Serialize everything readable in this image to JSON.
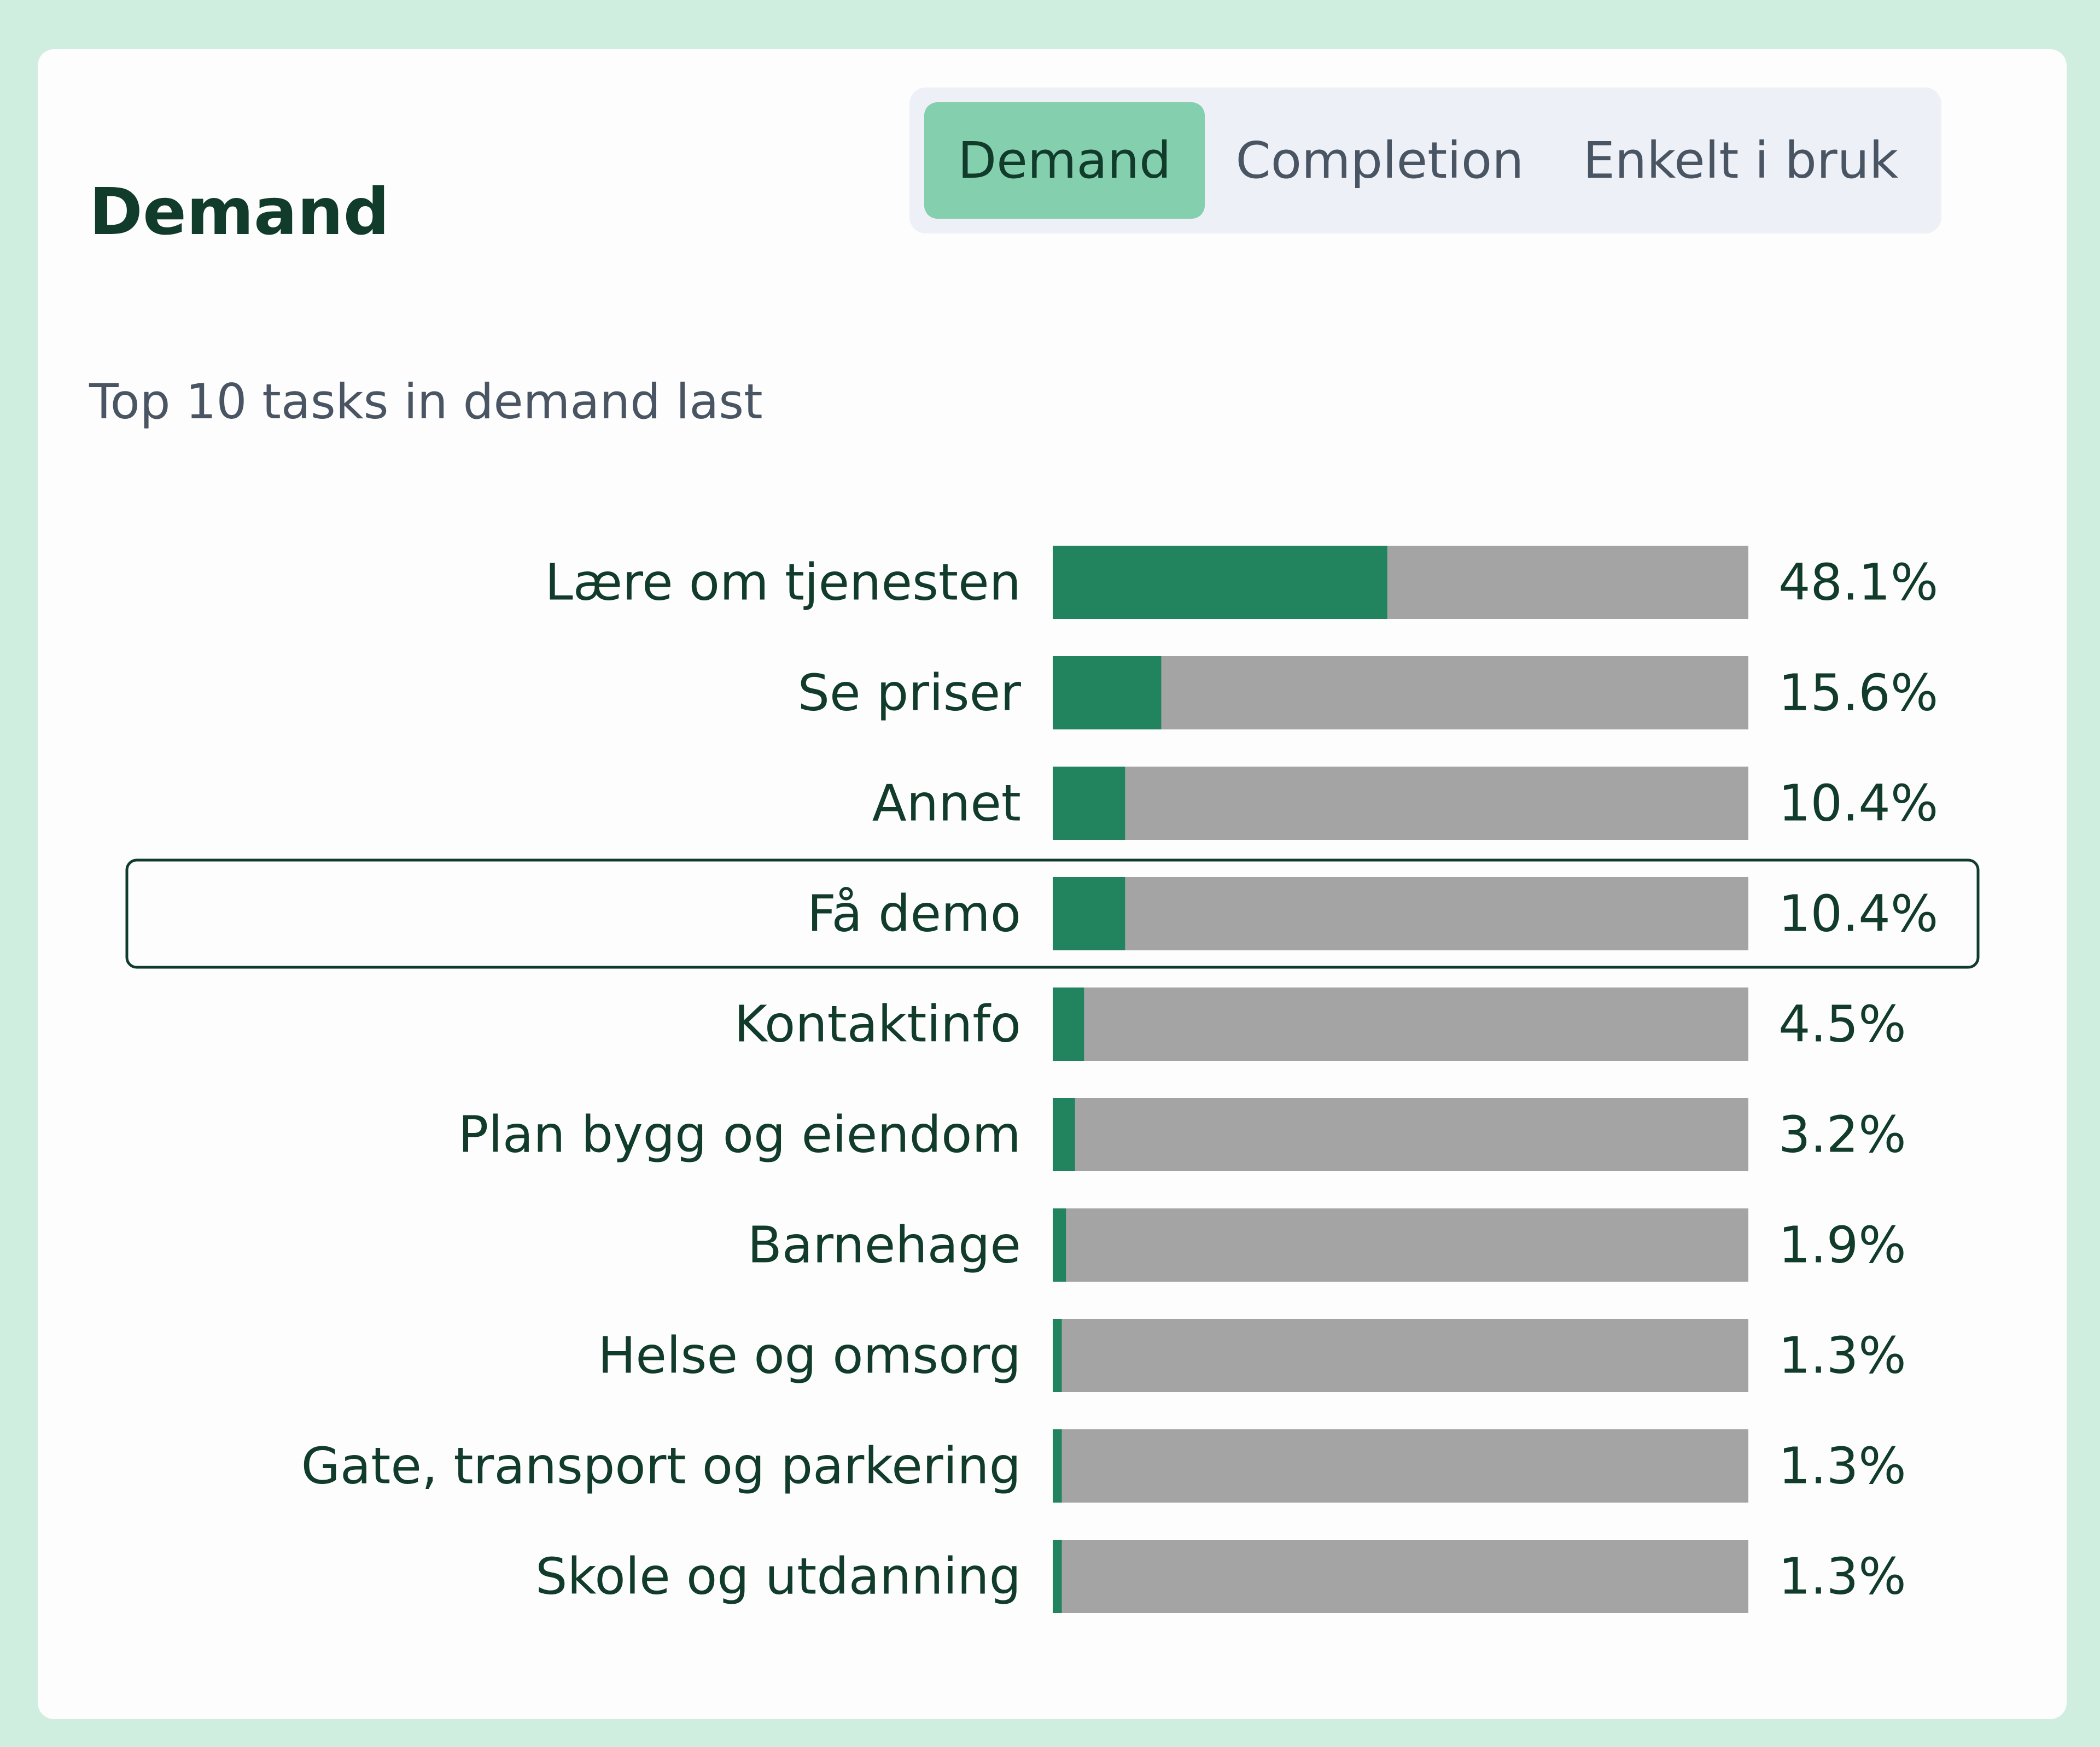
{
  "header": {
    "title": "Demand"
  },
  "tabs": [
    {
      "label": "Demand",
      "active": true
    },
    {
      "label": "Completion",
      "active": false
    },
    {
      "label": "Enkelt i bruk",
      "active": false
    }
  ],
  "subtitle": "Top 10 tasks in demand last",
  "colors": {
    "bar_fill": "#22845e",
    "bar_track": "#a4a4a4",
    "text": "#113b2b",
    "active_tab": "#84cfad",
    "highlight_border": "#113b2b"
  },
  "chart_data": {
    "type": "bar",
    "orientation": "horizontal",
    "categories": [
      "Lære om tjenesten",
      "Se priser",
      "Annet",
      "Få demo",
      "Kontaktinfo",
      "Plan bygg og eiendom",
      "Barnehage",
      "Helse og omsorg",
      "Gate, transport og parkering",
      "Skole og utdanning"
    ],
    "values": [
      48.1,
      15.6,
      10.4,
      10.4,
      4.5,
      3.2,
      1.9,
      1.3,
      1.3,
      1.3
    ],
    "value_labels": [
      "48.1%",
      "15.6%",
      "10.4%",
      "10.4%",
      "4.5%",
      "3.2%",
      "1.9%",
      "1.3%",
      "1.3%",
      "1.3%"
    ],
    "xlim": [
      0,
      100
    ],
    "highlighted_category": "Få demo"
  }
}
